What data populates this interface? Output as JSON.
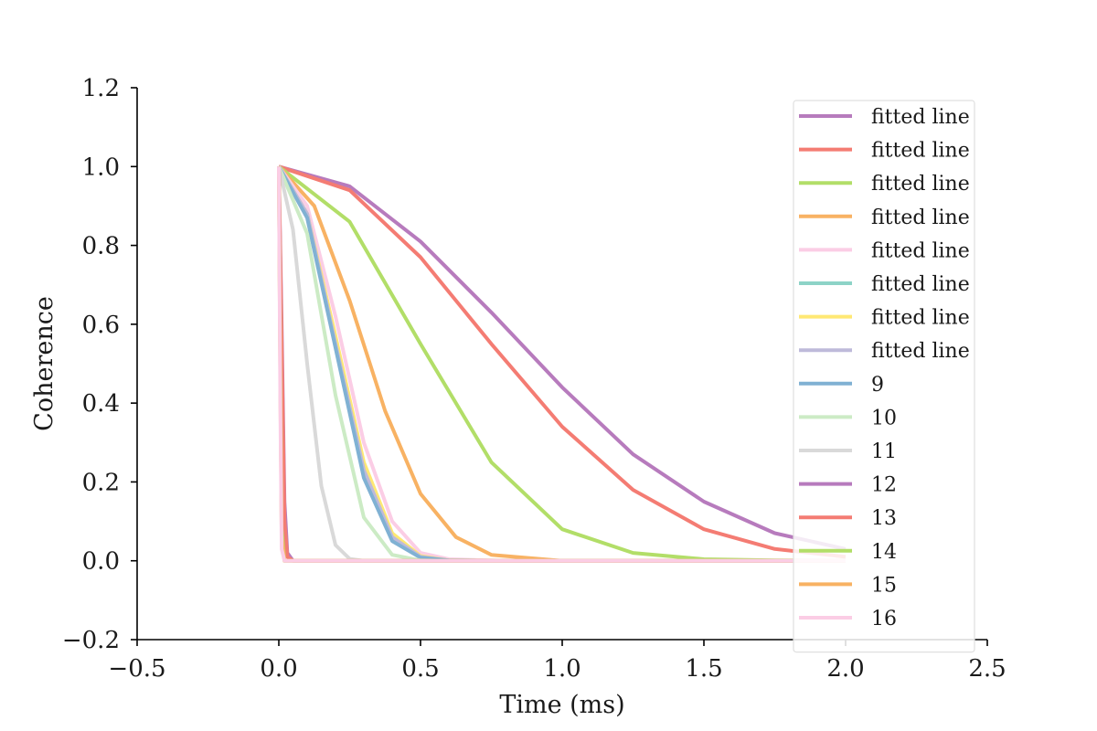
{
  "chart_data": {
    "type": "line",
    "title": "",
    "xlabel": "Time (ms)",
    "ylabel": "Coherence",
    "xlim": [
      -0.5,
      2.5
    ],
    "ylim": [
      -0.2,
      1.2
    ],
    "xticks": [
      -0.5,
      0.0,
      0.5,
      1.0,
      1.5,
      2.0,
      2.5
    ],
    "xtick_labels": [
      "−0.5",
      "0.0",
      "0.5",
      "1.0",
      "1.5",
      "2.0",
      "2.5"
    ],
    "yticks": [
      -0.2,
      0.0,
      0.2,
      0.4,
      0.6,
      0.8,
      1.0,
      1.2
    ],
    "ytick_labels": [
      "−0.2",
      "0.0",
      "0.2",
      "0.4",
      "0.6",
      "0.8",
      "1.0",
      "1.2"
    ],
    "grid": false,
    "legend_position": "right",
    "series": [
      {
        "name": "fitted line",
        "color": "#b77bbd",
        "x": [
          0,
          0.25,
          0.5,
          0.75,
          1.0,
          1.25,
          1.5,
          1.75,
          2.0
        ],
        "y": [
          1.0,
          0.95,
          0.81,
          0.63,
          0.44,
          0.27,
          0.15,
          0.07,
          0.03
        ]
      },
      {
        "name": "fitted line",
        "color": "#f47c73",
        "x": [
          0,
          0.25,
          0.5,
          0.75,
          1.0,
          1.25,
          1.5,
          1.75,
          2.0
        ],
        "y": [
          1.0,
          0.94,
          0.77,
          0.55,
          0.34,
          0.18,
          0.08,
          0.03,
          0.01
        ]
      },
      {
        "name": "fitted line",
        "color": "#b2de68",
        "x": [
          0,
          0.25,
          0.5,
          0.75,
          1.0,
          1.25,
          1.5,
          1.75,
          2.0
        ],
        "y": [
          1.0,
          0.86,
          0.55,
          0.25,
          0.08,
          0.02,
          0.004,
          0.001,
          0.0
        ]
      },
      {
        "name": "fitted line",
        "color": "#f8b263",
        "x": [
          0,
          0.125,
          0.25,
          0.375,
          0.5,
          0.625,
          0.75,
          1.0,
          1.25,
          1.5,
          2.0
        ],
        "y": [
          1.0,
          0.9,
          0.66,
          0.38,
          0.17,
          0.06,
          0.015,
          0.0,
          0.0,
          0.0,
          0.0
        ]
      },
      {
        "name": "fitted line",
        "color": "#fbcde5",
        "x": [
          0,
          0.1,
          0.2,
          0.3,
          0.4,
          0.5,
          0.6,
          0.8,
          1.0,
          1.5,
          2.0
        ],
        "y": [
          1.0,
          0.9,
          0.62,
          0.3,
          0.1,
          0.02,
          0.004,
          0.0,
          0.0,
          0.0,
          0.0
        ]
      },
      {
        "name": "fitted line",
        "color": "#8dd3c7",
        "x": [
          0,
          0.1,
          0.2,
          0.3,
          0.4,
          0.5,
          0.6,
          0.8,
          1.0,
          1.5,
          2.0
        ],
        "y": [
          1.0,
          0.88,
          0.56,
          0.24,
          0.06,
          0.01,
          0.001,
          0.0,
          0.0,
          0.0,
          0.0
        ]
      },
      {
        "name": "fitted line",
        "color": "#ffe873",
        "x": [
          0,
          0.1,
          0.2,
          0.3,
          0.4,
          0.5,
          0.6,
          0.8,
          1.0,
          1.5,
          2.0
        ],
        "y": [
          1.0,
          0.88,
          0.57,
          0.25,
          0.07,
          0.012,
          0.001,
          0.0,
          0.0,
          0.0,
          0.0
        ]
      },
      {
        "name": "fitted line",
        "color": "#bebada",
        "x": [
          0,
          0.1,
          0.2,
          0.3,
          0.4,
          0.5,
          0.6,
          0.8,
          1.0,
          1.5,
          2.0
        ],
        "y": [
          1.0,
          0.88,
          0.55,
          0.23,
          0.06,
          0.01,
          0.001,
          0.0,
          0.0,
          0.0,
          0.0
        ]
      },
      {
        "name": "9",
        "color": "#80b1d3",
        "x": [
          0,
          0.1,
          0.2,
          0.3,
          0.4,
          0.5,
          0.6,
          0.8,
          1.0,
          1.5,
          2.0
        ],
        "y": [
          1.0,
          0.87,
          0.54,
          0.21,
          0.05,
          0.008,
          0.001,
          0.0,
          0.0,
          0.0,
          0.0
        ]
      },
      {
        "name": "10",
        "color": "#ccebc5",
        "x": [
          0,
          0.1,
          0.2,
          0.3,
          0.4,
          0.5,
          0.6,
          0.8,
          1.0,
          1.5,
          2.0
        ],
        "y": [
          1.0,
          0.83,
          0.42,
          0.11,
          0.015,
          0.001,
          0.0,
          0.0,
          0.0,
          0.0,
          0.0
        ]
      },
      {
        "name": "11",
        "color": "#d9d9d9",
        "x": [
          0,
          0.05,
          0.1,
          0.15,
          0.2,
          0.25,
          0.3,
          0.5,
          1.0,
          1.5,
          2.0
        ],
        "y": [
          1.0,
          0.84,
          0.5,
          0.19,
          0.04,
          0.005,
          0.0,
          0.0,
          0.0,
          0.0,
          0.0
        ]
      },
      {
        "name": "12",
        "color": "#b77bbd",
        "x": [
          0,
          0.01,
          0.02,
          0.03,
          0.05,
          0.1,
          0.5,
          1.0,
          1.5,
          2.0
        ],
        "y": [
          1.0,
          0.6,
          0.15,
          0.02,
          0.0,
          0.0,
          0.0,
          0.0,
          0.0,
          0.0
        ]
      },
      {
        "name": "13",
        "color": "#f47c73",
        "x": [
          0,
          0.01,
          0.02,
          0.03,
          0.05,
          0.1,
          0.5,
          1.0,
          1.5,
          2.0
        ],
        "y": [
          1.0,
          0.55,
          0.1,
          0.01,
          0.0,
          0.0,
          0.0,
          0.0,
          0.0,
          0.0
        ]
      },
      {
        "name": "14",
        "color": "#b2de68",
        "x": [
          0,
          0.005,
          0.01,
          0.02,
          0.05,
          0.1,
          0.5,
          1.0,
          1.5,
          2.0
        ],
        "y": [
          1.0,
          0.5,
          0.08,
          0.0,
          0.0,
          0.0,
          0.0,
          0.0,
          0.0,
          0.0
        ]
      },
      {
        "name": "15",
        "color": "#f8b263",
        "x": [
          0,
          0.005,
          0.01,
          0.02,
          0.05,
          0.1,
          0.5,
          1.0,
          1.5,
          2.0
        ],
        "y": [
          1.0,
          0.45,
          0.06,
          0.0,
          0.0,
          0.0,
          0.0,
          0.0,
          0.0,
          0.0
        ]
      },
      {
        "name": "16",
        "color": "#fbcde5",
        "x": [
          0,
          0.005,
          0.01,
          0.02,
          0.05,
          0.1,
          0.5,
          1.0,
          1.5,
          2.0
        ],
        "y": [
          1.0,
          0.4,
          0.03,
          0.0,
          0.0,
          0.0,
          0.0,
          0.0,
          0.0,
          0.0
        ]
      }
    ]
  }
}
